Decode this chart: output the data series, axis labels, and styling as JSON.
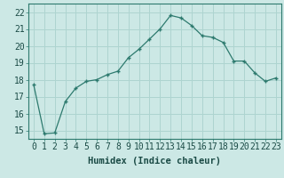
{
  "x": [
    0,
    1,
    2,
    3,
    4,
    5,
    6,
    7,
    8,
    9,
    10,
    11,
    12,
    13,
    14,
    15,
    16,
    17,
    18,
    19,
    20,
    21,
    22,
    23
  ],
  "y": [
    17.7,
    14.8,
    14.85,
    16.7,
    17.5,
    17.9,
    18.0,
    18.3,
    18.5,
    19.3,
    19.8,
    20.4,
    21.0,
    21.8,
    21.65,
    21.2,
    20.6,
    20.5,
    20.2,
    19.1,
    19.1,
    18.4,
    17.9,
    18.1
  ],
  "line_color": "#2d7a6e",
  "marker": "+",
  "bg_color": "#cce8e5",
  "grid_color": "#aed4d0",
  "xlabel": "Humidex (Indice chaleur)",
  "ylabel_ticks": [
    15,
    16,
    17,
    18,
    19,
    20,
    21,
    22
  ],
  "ylim": [
    14.5,
    22.5
  ],
  "xlim": [
    -0.5,
    23.5
  ],
  "xlabel_fontsize": 7.5,
  "tick_fontsize": 7,
  "title": ""
}
